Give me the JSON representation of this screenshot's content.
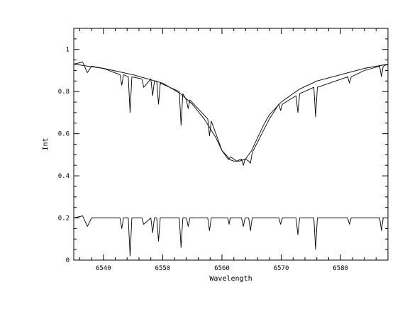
{
  "chart_data": {
    "type": "line",
    "title": "",
    "xlabel": "Wavelength",
    "ylabel": "Int",
    "xlim": [
      6535,
      6588
    ],
    "ylim": [
      0,
      1.1
    ],
    "grid": false,
    "x_ticks": [
      6540,
      6550,
      6560,
      6570,
      6580
    ],
    "y_ticks": [
      0,
      0.2,
      0.4,
      0.6,
      0.8,
      1
    ],
    "y_tick_labels": [
      "0",
      "0.2",
      "0.4",
      "0.6",
      "0.8",
      "1"
    ],
    "series": [
      {
        "style": "smooth model profile",
        "x": [
          6535,
          6540,
          6545,
          6550,
          6553,
          6555,
          6557,
          6559,
          6560,
          6561,
          6562,
          6563,
          6564,
          6565,
          6566,
          6567,
          6568,
          6570,
          6573,
          6576,
          6580,
          6584,
          6588
        ],
        "y": [
          0.93,
          0.91,
          0.88,
          0.84,
          0.79,
          0.74,
          0.67,
          0.58,
          0.52,
          0.48,
          0.47,
          0.47,
          0.48,
          0.52,
          0.58,
          0.64,
          0.69,
          0.75,
          0.81,
          0.85,
          0.88,
          0.91,
          0.93
        ]
      },
      {
        "style": "observed spectrum",
        "x": [
          6535,
          6536.5,
          6537.3,
          6538,
          6540,
          6542.8,
          6543.1,
          6543.4,
          6544.2,
          6544.5,
          6544.8,
          6546.5,
          6546.8,
          6548,
          6548.3,
          6548.6,
          6549,
          6549.3,
          6549.6,
          6552.8,
          6553.1,
          6553.4,
          6554,
          6554.3,
          6554.6,
          6557.6,
          6557.9,
          6558.2,
          6560,
          6561,
          6561.2,
          6561.4,
          6562.5,
          6563.3,
          6563.6,
          6563.9,
          6564.5,
          6564.8,
          6565.1,
          6568,
          6569.6,
          6569.9,
          6570.2,
          6572.5,
          6572.8,
          6573.1,
          6575.5,
          6575.8,
          6576.1,
          6581.2,
          6581.5,
          6581.8,
          6584,
          6586.6,
          6586.9,
          6587.2,
          6588
        ],
        "y": [
          0.93,
          0.94,
          0.89,
          0.92,
          0.91,
          0.88,
          0.83,
          0.88,
          0.87,
          0.7,
          0.87,
          0.86,
          0.82,
          0.86,
          0.78,
          0.85,
          0.85,
          0.74,
          0.84,
          0.8,
          0.64,
          0.79,
          0.76,
          0.72,
          0.76,
          0.67,
          0.59,
          0.66,
          0.52,
          0.49,
          0.48,
          0.49,
          0.47,
          0.48,
          0.45,
          0.48,
          0.47,
          0.46,
          0.51,
          0.67,
          0.74,
          0.71,
          0.74,
          0.78,
          0.7,
          0.79,
          0.82,
          0.68,
          0.82,
          0.87,
          0.84,
          0.87,
          0.9,
          0.92,
          0.87,
          0.92,
          0.93
        ]
      },
      {
        "style": "residual spectrum",
        "x": [
          6535,
          6536.5,
          6537.3,
          6538,
          6540,
          6542.8,
          6543.1,
          6543.4,
          6544.2,
          6544.5,
          6544.8,
          6546.5,
          6546.8,
          6548,
          6548.3,
          6548.6,
          6549,
          6549.3,
          6549.6,
          6552.8,
          6553.1,
          6553.4,
          6554,
          6554.3,
          6554.6,
          6557.6,
          6557.9,
          6558.2,
          6560,
          6561,
          6561.2,
          6561.4,
          6562.5,
          6563.3,
          6563.6,
          6563.9,
          6564.5,
          6564.8,
          6565.1,
          6568,
          6569.6,
          6569.9,
          6570.2,
          6572.5,
          6572.8,
          6573.1,
          6575.5,
          6575.8,
          6576.1,
          6581.2,
          6581.5,
          6581.8,
          6584,
          6586.6,
          6586.9,
          6587.2,
          6588
        ],
        "y": [
          0.2,
          0.21,
          0.16,
          0.2,
          0.2,
          0.2,
          0.15,
          0.2,
          0.2,
          0.02,
          0.2,
          0.2,
          0.17,
          0.2,
          0.13,
          0.2,
          0.2,
          0.09,
          0.2,
          0.2,
          0.06,
          0.2,
          0.2,
          0.16,
          0.2,
          0.2,
          0.14,
          0.2,
          0.2,
          0.2,
          0.17,
          0.2,
          0.2,
          0.2,
          0.16,
          0.2,
          0.2,
          0.14,
          0.2,
          0.2,
          0.2,
          0.17,
          0.2,
          0.2,
          0.12,
          0.2,
          0.2,
          0.05,
          0.2,
          0.2,
          0.17,
          0.2,
          0.2,
          0.2,
          0.14,
          0.2,
          0.2
        ]
      }
    ],
    "legend": "none"
  }
}
